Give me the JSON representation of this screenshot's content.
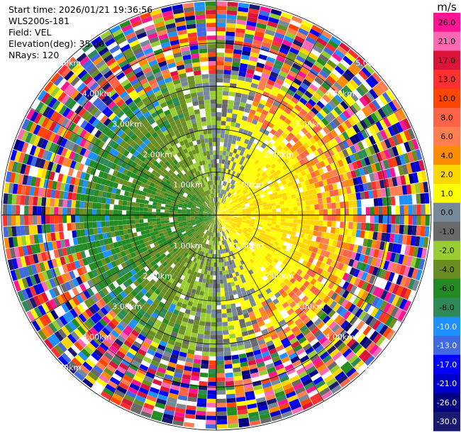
{
  "info": {
    "start_time": "Start time: 2026/01/21 19:36:56",
    "instrument": "WLS200s-181",
    "field": "Field: VEL",
    "elevation": "Elevation(deg): 35.00",
    "nrays": "NRays: 120"
  },
  "chart_data": {
    "type": "heatmap",
    "subtype": "ppi-polar",
    "nrays": 120,
    "max_range_km": 5.0,
    "range_rings_km": [
      1,
      2,
      3,
      4,
      5
    ],
    "ring_labels": [
      "1.00km",
      "2.00km",
      "3.00km",
      "4.00km",
      "5.00km"
    ],
    "colorbar": {
      "unit": "m/s",
      "tick_labels": [
        "26.0",
        "21.0",
        "17.0",
        "13.0",
        "10.0",
        "8.0",
        "6.0",
        "4.0",
        "2.0",
        "1.0",
        "0.0",
        "-1.0",
        "-2.0",
        "-4.0",
        "-6.0",
        "-8.0",
        "-10.0",
        "-13.0",
        "-17.0",
        "-21.0",
        "-26.0",
        "-30.0"
      ],
      "colors": [
        "#ff1493",
        "#ff69b4",
        "#dc143c",
        "#ff3030",
        "#ff4500",
        "#ff6347",
        "#ff7f50",
        "#ff8c00",
        "#ffd700",
        "#ffff00",
        "#778899",
        "#696969",
        "#9acd32",
        "#6b8e23",
        "#228b22",
        "#2e8b57",
        "#1e90ff",
        "#4169e1",
        "#0000ff",
        "#0000cd",
        "#000080",
        "#191970"
      ]
    }
  }
}
